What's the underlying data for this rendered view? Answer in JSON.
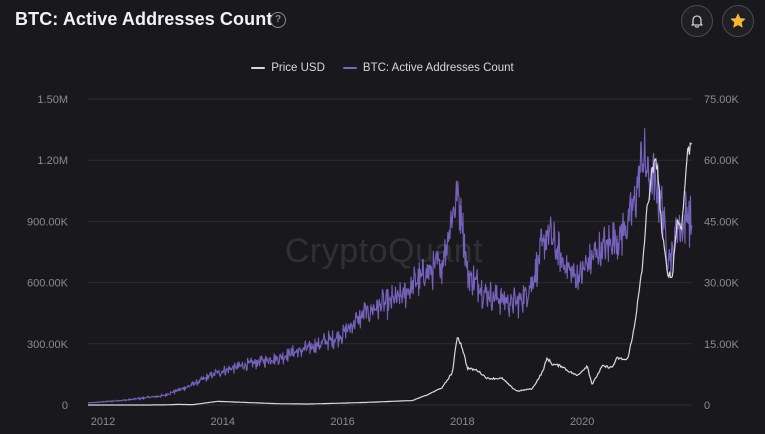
{
  "header": {
    "title": "BTC: Active Addresses Count",
    "help_icon": "question-circle-icon",
    "bell_icon": "bell-icon",
    "star_icon": "star-icon",
    "star_color": "#f5b731"
  },
  "watermark": "CryptoQuant",
  "colors": {
    "price": "#d9d9dc",
    "addresses": "#7a66c4",
    "grid": "#2c2c33",
    "background": "#19191d"
  },
  "chart_data": {
    "type": "line",
    "title": "BTC: Active Addresses Count",
    "legend": {
      "position": "top-center",
      "entries": [
        "Price USD",
        "BTC: Active Addresses Count"
      ]
    },
    "grid": true,
    "x_ticks": [
      "2012",
      "2014",
      "2016",
      "2018",
      "2020"
    ],
    "x_range": [
      "2011-10",
      "2021-11"
    ],
    "left_axis": {
      "ticks": [
        "0",
        "300.00K",
        "600.00K",
        "900.00K",
        "1.20M",
        "1.50M"
      ],
      "range": [
        0,
        1500000
      ]
    },
    "right_axis": {
      "ticks": [
        "0",
        "15.00K",
        "30.00K",
        "45.00K",
        "60.00K",
        "75.00K"
      ],
      "range": [
        0,
        75000
      ]
    },
    "series": [
      {
        "name": "Price USD",
        "axis": "right",
        "points": [
          [
            "2011-10",
            3
          ],
          [
            "2012-06",
            6
          ],
          [
            "2013-01",
            15
          ],
          [
            "2013-04",
            140
          ],
          [
            "2013-07",
            90
          ],
          [
            "2013-12",
            900
          ],
          [
            "2014-06",
            600
          ],
          [
            "2014-12",
            320
          ],
          [
            "2015-06",
            240
          ],
          [
            "2015-12",
            430
          ],
          [
            "2016-06",
            650
          ],
          [
            "2016-12",
            960
          ],
          [
            "2017-03",
            1100
          ],
          [
            "2017-06",
            2500
          ],
          [
            "2017-09",
            4300
          ],
          [
            "2017-11",
            8000
          ],
          [
            "2017-12",
            17000
          ],
          [
            "2018-01",
            14000
          ],
          [
            "2018-02",
            9000
          ],
          [
            "2018-04",
            8500
          ],
          [
            "2018-06",
            6500
          ],
          [
            "2018-09",
            6500
          ],
          [
            "2018-11",
            4200
          ],
          [
            "2018-12",
            3400
          ],
          [
            "2019-03",
            4000
          ],
          [
            "2019-05",
            8000
          ],
          [
            "2019-06",
            11500
          ],
          [
            "2019-07",
            10000
          ],
          [
            "2019-09",
            9500
          ],
          [
            "2019-10",
            8500
          ],
          [
            "2019-12",
            7200
          ],
          [
            "2020-02",
            9600
          ],
          [
            "2020-03",
            5000
          ],
          [
            "2020-05",
            9500
          ],
          [
            "2020-07",
            9200
          ],
          [
            "2020-08",
            11500
          ],
          [
            "2020-10",
            11000
          ],
          [
            "2020-11",
            16000
          ],
          [
            "2020-12",
            24000
          ],
          [
            "2021-01",
            33000
          ],
          [
            "2021-02",
            48000
          ],
          [
            "2021-03",
            57000
          ],
          [
            "2021-04",
            60000
          ],
          [
            "2021-05",
            42000
          ],
          [
            "2021-06",
            33000
          ],
          [
            "2021-07",
            31000
          ],
          [
            "2021-08",
            45000
          ],
          [
            "2021-09",
            44000
          ],
          [
            "2021-10",
            61000
          ],
          [
            "2021-11",
            65000
          ]
        ]
      },
      {
        "name": "BTC: Active Addresses Count",
        "axis": "left",
        "points": [
          [
            "2011-10",
            10000
          ],
          [
            "2012-06",
            25000
          ],
          [
            "2013-01",
            45000
          ],
          [
            "2013-06",
            90000
          ],
          [
            "2013-12",
            160000
          ],
          [
            "2014-06",
            200000
          ],
          [
            "2014-12",
            230000
          ],
          [
            "2015-06",
            280000
          ],
          [
            "2015-12",
            330000
          ],
          [
            "2016-06",
            460000
          ],
          [
            "2016-12",
            520000
          ],
          [
            "2017-06",
            650000
          ],
          [
            "2017-09",
            700000
          ],
          [
            "2017-12",
            1050000
          ],
          [
            "2018-01",
            900000
          ],
          [
            "2018-02",
            650000
          ],
          [
            "2018-06",
            540000
          ],
          [
            "2018-12",
            500000
          ],
          [
            "2019-03",
            600000
          ],
          [
            "2019-06",
            850000
          ],
          [
            "2019-09",
            700000
          ],
          [
            "2019-12",
            620000
          ],
          [
            "2020-03",
            720000
          ],
          [
            "2020-06",
            780000
          ],
          [
            "2020-09",
            850000
          ],
          [
            "2020-11",
            950000
          ],
          [
            "2021-01",
            1200000
          ],
          [
            "2021-03",
            1100000
          ],
          [
            "2021-05",
            1000000
          ],
          [
            "2021-06",
            780000
          ],
          [
            "2021-07",
            700000
          ],
          [
            "2021-08",
            900000
          ],
          [
            "2021-09",
            850000
          ],
          [
            "2021-10",
            950000
          ],
          [
            "2021-11",
            870000
          ]
        ]
      }
    ]
  }
}
